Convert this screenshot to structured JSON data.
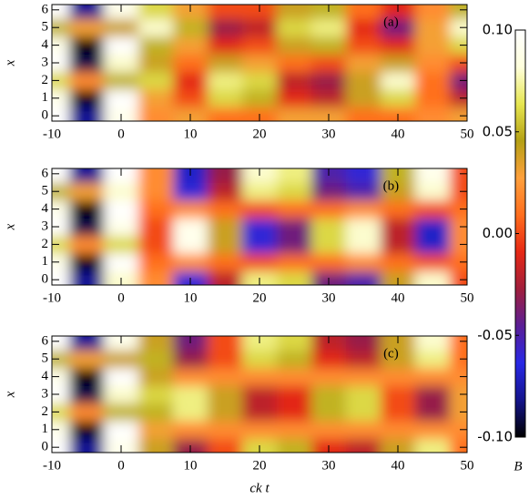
{
  "chart_data": [
    {
      "type": "contour",
      "annotation": "(a)",
      "ylabel": "x",
      "x": [
        -10,
        -5,
        0,
        5,
        10,
        15,
        20,
        25,
        30,
        35,
        40,
        45,
        50
      ],
      "y": [
        0,
        1,
        2,
        3,
        4,
        5,
        6
      ],
      "z": [
        [
          0.1,
          -0.08,
          0.09,
          0.02,
          0.03,
          0.01,
          0.01,
          0.03,
          0.03,
          0.01,
          0.01,
          0.02,
          0.03
        ],
        [
          0.09,
          -0.1,
          0.1,
          0.03,
          0,
          0.06,
          0.05,
          -0.01,
          -0.02,
          0.04,
          0.06,
          0.01,
          -0.02
        ],
        [
          0.06,
          0.02,
          0.05,
          0.06,
          -0.01,
          0.07,
          0.06,
          -0.02,
          -0.03,
          0.04,
          0.08,
          0.01,
          -0.04
        ],
        [
          0.1,
          -0.09,
          0.08,
          0.04,
          0.01,
          0.04,
          0.03,
          0.01,
          0,
          0.03,
          0.04,
          0.02,
          0
        ],
        [
          0.09,
          -0.1,
          0.1,
          0.05,
          0.03,
          -0.01,
          0,
          0.04,
          0.05,
          0,
          -0.01,
          0.03,
          0.06
        ],
        [
          0.05,
          0.03,
          0.04,
          0.08,
          0.05,
          -0.03,
          -0.02,
          0.06,
          0.07,
          -0.01,
          -0.04,
          0.03,
          0.08
        ],
        [
          0.1,
          -0.08,
          0.09,
          0.06,
          0.03,
          0,
          0,
          0.04,
          0.05,
          0.01,
          -0.01,
          0.02,
          0.05
        ]
      ],
      "xlim": [
        -10,
        50
      ],
      "ylim": [
        -0.3,
        6.3
      ],
      "xticks": [
        -10,
        0,
        10,
        20,
        30,
        40,
        50
      ],
      "yticks": [
        0,
        1,
        2,
        3,
        4,
        5,
        6
      ]
    },
    {
      "type": "contour",
      "annotation": "(b)",
      "ylabel": "x",
      "x": [
        -10,
        -5,
        0,
        5,
        10,
        15,
        20,
        25,
        30,
        35,
        40,
        45,
        50
      ],
      "y": [
        0,
        1,
        2,
        3,
        4,
        5,
        6
      ],
      "z": [
        [
          0.1,
          -0.08,
          0.08,
          0.02,
          -0.06,
          -0.02,
          0.07,
          0.06,
          -0.04,
          -0.05,
          0.04,
          0.08,
          0
        ],
        [
          0.09,
          -0.1,
          0.1,
          0.01,
          0.02,
          0.01,
          0,
          0.01,
          0.01,
          0.02,
          0.01,
          0,
          0.01
        ],
        [
          0.06,
          0.02,
          0.06,
          0,
          0.09,
          0.04,
          -0.06,
          -0.04,
          0.06,
          0.08,
          -0.02,
          -0.07,
          0.02
        ],
        [
          0.1,
          -0.09,
          0.09,
          0,
          0.09,
          0.04,
          -0.06,
          -0.04,
          0.06,
          0.08,
          -0.02,
          -0.07,
          0.02
        ],
        [
          0.09,
          -0.1,
          0.1,
          0.01,
          0.02,
          0.01,
          0,
          0.01,
          0.01,
          0.02,
          0.01,
          0,
          0.01
        ],
        [
          0.05,
          0.03,
          0.08,
          0.02,
          -0.06,
          -0.02,
          0.07,
          0.06,
          -0.04,
          -0.05,
          0.04,
          0.08,
          0
        ],
        [
          0.1,
          -0.08,
          0.1,
          0.02,
          -0.07,
          -0.03,
          0.08,
          0.07,
          -0.05,
          -0.06,
          0.05,
          0.09,
          0
        ]
      ],
      "xlim": [
        -10,
        50
      ],
      "ylim": [
        -0.3,
        6.3
      ],
      "xticks": [
        -10,
        0,
        10,
        20,
        30,
        40,
        50
      ],
      "yticks": [
        0,
        1,
        2,
        3,
        4,
        5,
        6
      ]
    },
    {
      "type": "contour",
      "annotation": "(c)",
      "ylabel": "x",
      "xlabel": "ck t",
      "x": [
        -10,
        -5,
        0,
        5,
        10,
        15,
        20,
        25,
        30,
        35,
        40,
        45,
        50
      ],
      "y": [
        0,
        1,
        2,
        3,
        4,
        5,
        6
      ],
      "z": [
        [
          0.1,
          -0.08,
          0.09,
          0.04,
          -0.03,
          0,
          0.06,
          0.05,
          -0.01,
          -0.02,
          0.04,
          0.07,
          0.01
        ],
        [
          0.09,
          -0.1,
          0.1,
          0.03,
          0.02,
          0.02,
          0.02,
          0.02,
          0.02,
          0.02,
          0.02,
          0.02,
          0.02
        ],
        [
          0.06,
          0.02,
          0.05,
          0.05,
          0.07,
          0.04,
          -0.02,
          -0.01,
          0.05,
          0.06,
          0,
          -0.03,
          0.03
        ],
        [
          0.1,
          -0.09,
          0.08,
          0.06,
          0.07,
          0.04,
          -0.02,
          -0.01,
          0.05,
          0.06,
          0,
          -0.03,
          0.03
        ],
        [
          0.09,
          -0.1,
          0.1,
          0.04,
          0.02,
          0.02,
          0.02,
          0.02,
          0.02,
          0.02,
          0.02,
          0.02,
          0.02
        ],
        [
          0.05,
          0.03,
          0.04,
          0.05,
          -0.03,
          0,
          0.06,
          0.05,
          -0.01,
          -0.02,
          0.04,
          0.07,
          0.01
        ],
        [
          0.1,
          -0.08,
          0.09,
          0.04,
          -0.04,
          0,
          0.07,
          0.06,
          -0.02,
          -0.03,
          0.04,
          0.08,
          0.01
        ]
      ],
      "xlim": [
        -10,
        50
      ],
      "ylim": [
        -0.3,
        6.3
      ],
      "xticks": [
        -10,
        0,
        10,
        20,
        30,
        40,
        50
      ],
      "yticks": [
        0,
        1,
        2,
        3,
        4,
        5,
        6
      ]
    }
  ],
  "colorbar": {
    "label": "B",
    "zlim": [
      -0.1,
      0.1
    ],
    "zticks": [
      {
        "value": 0.1,
        "label": "0.10"
      },
      {
        "value": 0.05,
        "label": "0.05"
      },
      {
        "value": 0,
        "label": "0.00"
      },
      {
        "value": -0.05,
        "label": "-0.05"
      },
      {
        "value": -0.1,
        "label": "-0.10"
      }
    ],
    "colormap": [
      "#000000",
      "#14148c",
      "#2828e6",
      "#5a1e96",
      "#a01e3c",
      "#e62814",
      "#ff6e1e",
      "#ffa03c",
      "#b4a014",
      "#e6e650",
      "#ffffdc",
      "#ffffff"
    ]
  }
}
